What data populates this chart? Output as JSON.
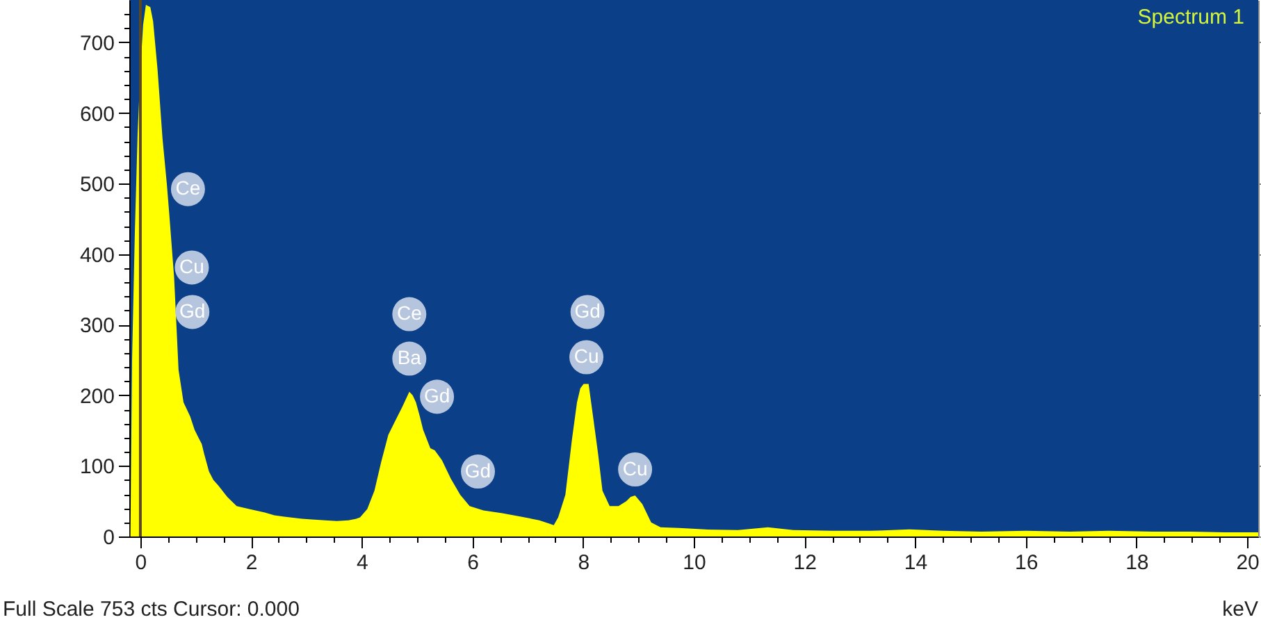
{
  "chart_data": {
    "type": "area",
    "title": "Spectrum 1",
    "xlabel": "keV",
    "annotations": [
      "Full Scale 753 cts Cursor: 0.000",
      {
        "text": "Ce",
        "x": 0.86,
        "y": 492
      },
      {
        "text": "Cu",
        "x": 0.93,
        "y": 381
      },
      {
        "text": "Gd",
        "x": 0.94,
        "y": 318
      },
      {
        "text": "Ce",
        "x": 4.86,
        "y": 315
      },
      {
        "text": "Ba",
        "x": 4.86,
        "y": 252
      },
      {
        "text": "Gd",
        "x": 5.36,
        "y": 198
      },
      {
        "text": "Gd",
        "x": 6.1,
        "y": 92
      },
      {
        "text": "Gd",
        "x": 8.08,
        "y": 318
      },
      {
        "text": "Cu",
        "x": 8.06,
        "y": 254
      },
      {
        "text": "Cu",
        "x": 8.94,
        "y": 95
      }
    ],
    "x": [
      -0.18,
      -0.15,
      -0.1,
      -0.05,
      0,
      0.05,
      0.1,
      0.18,
      0.23,
      0.31,
      0.4,
      0.48,
      0.52,
      0.61,
      0.65,
      0.69,
      0.78,
      0.9,
      0.98,
      1.05,
      1.11,
      1.15,
      1.24,
      1.32,
      1.41,
      1.57,
      1.74,
      1.9,
      2.08,
      2.25,
      2.42,
      2.6,
      2.92,
      3.1,
      3.34,
      3.55,
      3.76,
      3.9,
      3.97,
      4.1,
      4.23,
      4.35,
      4.48,
      4.6,
      4.73,
      4.8,
      4.86,
      4.92,
      4.98,
      5.05,
      5.11,
      5.24,
      5.32,
      5.45,
      5.61,
      5.78,
      5.95,
      6.2,
      6.54,
      6.88,
      7.21,
      7.4,
      7.47,
      7.55,
      7.68,
      7.8,
      7.89,
      7.95,
      8.01,
      8.1,
      8.18,
      8.27,
      8.35,
      8.48,
      8.64,
      8.78,
      8.86,
      8.94,
      9.07,
      9.23,
      9.4,
      9.74,
      10.2,
      10.8,
      11.34,
      11.8,
      12.5,
      13.2,
      13.9,
      14.5,
      15.2,
      16,
      16.8,
      17.5,
      18.3,
      19,
      19.6,
      20.2
    ],
    "series": [
      {
        "color": "#ffff00",
        "values": [
          0,
          250,
          430,
          570,
          660,
          725,
          753,
          750,
          730,
          662,
          564,
          498,
          459,
          367,
          302,
          236,
          190,
          170,
          151,
          140,
          131,
          118,
          92,
          80,
          72,
          56,
          43,
          40,
          37,
          34,
          30,
          28,
          25,
          24,
          23,
          22,
          23,
          25,
          27,
          39,
          65,
          105,
          144,
          163,
          183,
          195,
          205,
          200,
          190,
          170,
          151,
          125,
          122,
          108,
          82,
          59,
          43,
          37,
          33,
          28,
          23,
          18,
          16,
          27,
          59,
          138,
          190,
          210,
          216,
          216,
          170,
          118,
          65,
          43,
          43,
          50,
          56,
          58,
          46,
          20,
          13,
          12,
          10,
          9,
          13,
          9,
          8,
          8,
          10,
          8,
          7,
          8,
          7,
          8,
          7,
          7,
          6,
          6
        ]
      }
    ],
    "xlim": [
      -0.2,
      20.2
    ],
    "ylim": [
      0,
      760
    ],
    "xticks": [
      0,
      {
        "value": 0.5,
        "label": null
      },
      {
        "value": 1,
        "label": null
      },
      {
        "value": 1.5,
        "label": null
      },
      2,
      {
        "value": 2.5,
        "label": null
      },
      {
        "value": 3,
        "label": null
      },
      {
        "value": 3.5,
        "label": null
      },
      4,
      {
        "value": 4.5,
        "label": null
      },
      {
        "value": 5,
        "label": null
      },
      {
        "value": 5.5,
        "label": null
      },
      6,
      {
        "value": 6.5,
        "label": null
      },
      {
        "value": 7,
        "label": null
      },
      {
        "value": 7.5,
        "label": null
      },
      8,
      {
        "value": 8.5,
        "label": null
      },
      {
        "value": 9,
        "label": null
      },
      {
        "value": 9.5,
        "label": null
      },
      10,
      {
        "value": 10.5,
        "label": null
      },
      {
        "value": 11,
        "label": null
      },
      {
        "value": 11.5,
        "label": null
      },
      12,
      {
        "value": 12.5,
        "label": null
      },
      {
        "value": 13,
        "label": null
      },
      {
        "value": 13.5,
        "label": null
      },
      14,
      {
        "value": 14.5,
        "label": null
      },
      {
        "value": 15,
        "label": null
      },
      {
        "value": 15.5,
        "label": null
      },
      16,
      {
        "value": 16.5,
        "label": null
      },
      {
        "value": 17,
        "label": null
      },
      {
        "value": 17.5,
        "label": null
      },
      18,
      {
        "value": 18.5,
        "label": null
      },
      {
        "value": 19,
        "label": null
      },
      {
        "value": 19.5,
        "label": null
      },
      20
    ],
    "yticks": [
      0,
      {
        "value": 20,
        "label": null
      },
      {
        "value": 40,
        "label": null
      },
      {
        "value": 60,
        "label": null
      },
      {
        "value": 80,
        "label": null
      },
      100,
      {
        "value": 120,
        "label": null
      },
      {
        "value": 140,
        "label": null
      },
      {
        "value": 160,
        "label": null
      },
      {
        "value": 180,
        "label": null
      },
      200,
      {
        "value": 220,
        "label": null
      },
      {
        "value": 240,
        "label": null
      },
      {
        "value": 260,
        "label": null
      },
      {
        "value": 280,
        "label": null
      },
      300,
      {
        "value": 320,
        "label": null
      },
      {
        "value": 340,
        "label": null
      },
      {
        "value": 360,
        "label": null
      },
      {
        "value": 380,
        "label": null
      },
      400,
      {
        "value": 420,
        "label": null
      },
      {
        "value": 440,
        "label": null
      },
      {
        "value": 460,
        "label": null
      },
      {
        "value": 480,
        "label": null
      },
      500,
      {
        "value": 520,
        "label": null
      },
      {
        "value": 540,
        "label": null
      },
      {
        "value": 560,
        "label": null
      },
      {
        "value": 580,
        "label": null
      },
      600,
      {
        "value": 620,
        "label": null
      },
      {
        "value": 640,
        "label": null
      },
      {
        "value": 660,
        "label": null
      },
      {
        "value": 680,
        "label": null
      },
      700,
      {
        "value": 720,
        "label": null
      },
      {
        "value": 740,
        "label": null
      }
    ],
    "ref_lines": [
      {
        "axis": "x",
        "value": 0,
        "color": "#5c4a1e"
      }
    ]
  }
}
